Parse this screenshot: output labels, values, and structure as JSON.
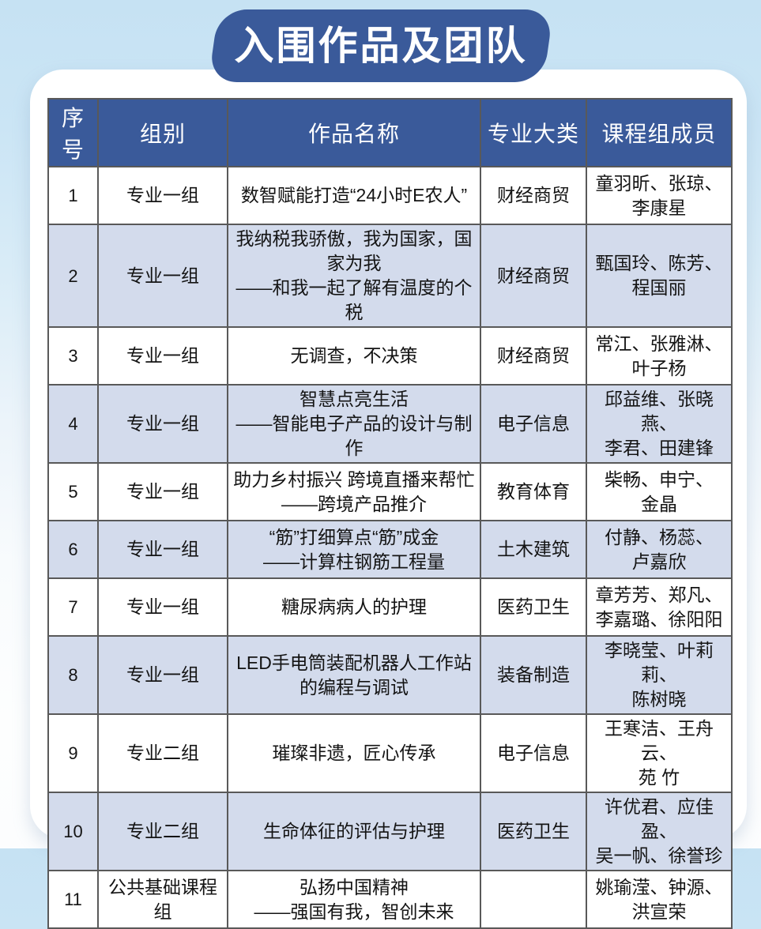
{
  "title": {
    "text": "入围作品及团队"
  },
  "colors": {
    "accent_blue": "#3a5a9a",
    "row_alt": "#d3dbec",
    "background_top": "#c6e2f3",
    "card": "#ffffff",
    "border": "#595959",
    "title_text": "#ffffff"
  },
  "table": {
    "headers": [
      "序号",
      "组别",
      "作品名称",
      "专业大类",
      "课程组成员"
    ],
    "rows": [
      {
        "no": "1",
        "group": "专业一组",
        "work": "数智赋能打造“24小时E农人”",
        "category": "财经商贸",
        "members": "童羽昕、张琼、\n李康星"
      },
      {
        "no": "2",
        "group": "专业一组",
        "work": "我纳税我骄傲，我为国家，国家为我\n——和我一起了解有温度的个税",
        "category": "财经商贸",
        "members": "甄国玲、陈芳、\n程国丽"
      },
      {
        "no": "3",
        "group": "专业一组",
        "work": "无调查，不决策",
        "category": "财经商贸",
        "members": "常江、张雅淋、\n叶子杨"
      },
      {
        "no": "4",
        "group": "专业一组",
        "work": "智慧点亮生活\n——智能电子产品的设计与制作",
        "category": "电子信息",
        "members": "邱益维、张晓燕、\n李君、田建锋"
      },
      {
        "no": "5",
        "group": "专业一组",
        "work": "助力乡村振兴 跨境直播来帮忙\n——跨境产品推介",
        "category": "教育体育",
        "members": "柴畅、申宁、\n金晶"
      },
      {
        "no": "6",
        "group": "专业一组",
        "work": "“筋”打细算点“筋”成金\n——计算柱钢筋工程量",
        "category": "土木建筑",
        "members": "付静、杨蕊、\n卢嘉欣"
      },
      {
        "no": "7",
        "group": "专业一组",
        "work": "糖尿病病人的护理",
        "category": "医药卫生",
        "members": "章芳芳、郑凡、\n李嘉璐、徐阳阳"
      },
      {
        "no": "8",
        "group": "专业一组",
        "work": "LED手电筒装配机器人工作站\n的编程与调试",
        "category": "装备制造",
        "members": "李晓莹、叶莉莉、\n陈树晓"
      },
      {
        "no": "9",
        "group": "专业二组",
        "work": "璀璨非遗，匠心传承",
        "category": "电子信息",
        "members": "王寒洁、王舟云、\n苑 竹"
      },
      {
        "no": "10",
        "group": "专业二组",
        "work": "生命体征的评估与护理",
        "category": "医药卫生",
        "members": "许优君、应佳盈、\n吴一帆、徐誉珍"
      },
      {
        "no": "11",
        "group": "公共基础课程组",
        "work": "弘扬中国精神\n——强国有我，智创未来",
        "category": "",
        "members": "姚瑜滢、钟源、\n洪宣荣"
      }
    ]
  }
}
